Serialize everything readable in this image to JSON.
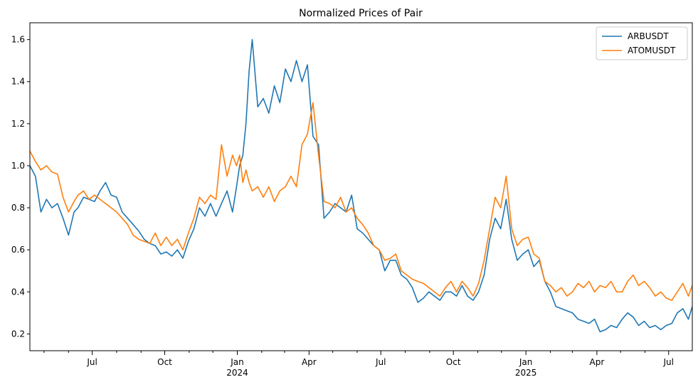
{
  "chart_data": {
    "type": "line",
    "title": "Normalized Prices of Pair",
    "xlabel": "",
    "ylabel": "",
    "legend_position": "top-right",
    "grid": false,
    "x_range": [
      "2023-04-13",
      "2025-07-31"
    ],
    "ylim": [
      0.12,
      1.68
    ],
    "y_ticks": [
      0.2,
      0.4,
      0.6,
      0.8,
      1.0,
      1.2,
      1.4,
      1.6
    ],
    "y_tick_labels": [
      "0.2",
      "0.4",
      "0.6",
      "0.8",
      "1.0",
      "1.2",
      "1.4",
      "1.6"
    ],
    "x_ticks": [
      {
        "date": "2023-07-01",
        "label": "Jul",
        "sub": ""
      },
      {
        "date": "2023-10-01",
        "label": "Oct",
        "sub": ""
      },
      {
        "date": "2024-01-01",
        "label": "Jan",
        "sub": "2024"
      },
      {
        "date": "2024-04-01",
        "label": "Apr",
        "sub": ""
      },
      {
        "date": "2024-07-01",
        "label": "Jul",
        "sub": ""
      },
      {
        "date": "2024-10-01",
        "label": "Oct",
        "sub": ""
      },
      {
        "date": "2025-01-01",
        "label": "Jan",
        "sub": "2025"
      },
      {
        "date": "2025-04-01",
        "label": "Apr",
        "sub": ""
      },
      {
        "date": "2025-07-01",
        "label": "Jul",
        "sub": ""
      }
    ],
    "minor_ticks": [
      "2023-05-01",
      "2023-06-01",
      "2023-08-01",
      "2023-09-01",
      "2023-11-01",
      "2023-12-01",
      "2024-02-01",
      "2024-03-01",
      "2024-05-01",
      "2024-06-01",
      "2024-08-01",
      "2024-09-01",
      "2024-11-01",
      "2024-12-01",
      "2025-02-01",
      "2025-03-01",
      "2025-05-01",
      "2025-06-01"
    ],
    "series": [
      {
        "name": "ARBUSDT",
        "color": "#1f77b4",
        "x": [
          "2023-04-13",
          "2023-04-20",
          "2023-04-27",
          "2023-05-04",
          "2023-05-11",
          "2023-05-18",
          "2023-05-25",
          "2023-06-01",
          "2023-06-08",
          "2023-06-13",
          "2023-06-20",
          "2023-06-27",
          "2023-07-04",
          "2023-07-11",
          "2023-07-18",
          "2023-07-25",
          "2023-08-01",
          "2023-08-08",
          "2023-08-15",
          "2023-08-22",
          "2023-08-29",
          "2023-09-05",
          "2023-09-12",
          "2023-09-19",
          "2023-09-26",
          "2023-10-03",
          "2023-10-10",
          "2023-10-17",
          "2023-10-24",
          "2023-10-31",
          "2023-11-07",
          "2023-11-14",
          "2023-11-21",
          "2023-11-28",
          "2023-12-05",
          "2023-12-12",
          "2023-12-19",
          "2023-12-26",
          "2023-12-31",
          "2024-01-04",
          "2024-01-08",
          "2024-01-12",
          "2024-01-16",
          "2024-01-20",
          "2024-01-27",
          "2024-02-03",
          "2024-02-10",
          "2024-02-17",
          "2024-02-24",
          "2024-03-02",
          "2024-03-09",
          "2024-03-16",
          "2024-03-23",
          "2024-03-30",
          "2024-04-06",
          "2024-04-13",
          "2024-04-20",
          "2024-04-27",
          "2024-05-04",
          "2024-05-11",
          "2024-05-18",
          "2024-05-25",
          "2024-06-01",
          "2024-06-08",
          "2024-06-15",
          "2024-06-22",
          "2024-06-29",
          "2024-07-06",
          "2024-07-13",
          "2024-07-20",
          "2024-07-27",
          "2024-08-03",
          "2024-08-10",
          "2024-08-17",
          "2024-08-24",
          "2024-08-31",
          "2024-09-07",
          "2024-09-14",
          "2024-09-21",
          "2024-09-28",
          "2024-10-05",
          "2024-10-12",
          "2024-10-19",
          "2024-10-26",
          "2024-11-02",
          "2024-11-09",
          "2024-11-16",
          "2024-11-23",
          "2024-11-30",
          "2024-12-07",
          "2024-12-14",
          "2024-12-21",
          "2024-12-28",
          "2025-01-04",
          "2025-01-11",
          "2025-01-18",
          "2025-01-25",
          "2025-02-01",
          "2025-02-08",
          "2025-02-15",
          "2025-02-22",
          "2025-03-01",
          "2025-03-08",
          "2025-03-15",
          "2025-03-22",
          "2025-03-29",
          "2025-04-05",
          "2025-04-12",
          "2025-04-19",
          "2025-04-26",
          "2025-05-03",
          "2025-05-10",
          "2025-05-17",
          "2025-05-24",
          "2025-05-31",
          "2025-06-07",
          "2025-06-14",
          "2025-06-21",
          "2025-06-28",
          "2025-07-05",
          "2025-07-12",
          "2025-07-19",
          "2025-07-26",
          "2025-07-31"
        ],
        "values": [
          1.0,
          0.95,
          0.78,
          0.84,
          0.8,
          0.82,
          0.75,
          0.67,
          0.78,
          0.8,
          0.85,
          0.84,
          0.83,
          0.88,
          0.92,
          0.86,
          0.85,
          0.78,
          0.75,
          0.72,
          0.69,
          0.65,
          0.63,
          0.62,
          0.58,
          0.59,
          0.57,
          0.6,
          0.56,
          0.64,
          0.7,
          0.8,
          0.76,
          0.82,
          0.76,
          0.82,
          0.88,
          0.78,
          0.9,
          1.0,
          1.05,
          1.2,
          1.45,
          1.6,
          1.28,
          1.32,
          1.25,
          1.38,
          1.3,
          1.46,
          1.4,
          1.5,
          1.4,
          1.48,
          1.14,
          1.1,
          0.75,
          0.78,
          0.82,
          0.8,
          0.78,
          0.86,
          0.7,
          0.68,
          0.65,
          0.62,
          0.6,
          0.5,
          0.55,
          0.55,
          0.48,
          0.46,
          0.42,
          0.35,
          0.37,
          0.4,
          0.38,
          0.36,
          0.4,
          0.4,
          0.38,
          0.43,
          0.38,
          0.36,
          0.4,
          0.48,
          0.65,
          0.75,
          0.7,
          0.84,
          0.65,
          0.55,
          0.58,
          0.6,
          0.52,
          0.55,
          0.45,
          0.4,
          0.33,
          0.32,
          0.31,
          0.3,
          0.27,
          0.26,
          0.25,
          0.27,
          0.21,
          0.22,
          0.24,
          0.23,
          0.27,
          0.3,
          0.28,
          0.24,
          0.26,
          0.23,
          0.24,
          0.22,
          0.24,
          0.25,
          0.3,
          0.32,
          0.27,
          0.33
        ]
      },
      {
        "name": "ATOMUSDT",
        "color": "#ff7f0e",
        "x": [
          "2023-04-13",
          "2023-04-20",
          "2023-04-27",
          "2023-05-04",
          "2023-05-11",
          "2023-05-18",
          "2023-05-25",
          "2023-06-01",
          "2023-06-08",
          "2023-06-13",
          "2023-06-20",
          "2023-06-27",
          "2023-07-04",
          "2023-07-11",
          "2023-07-18",
          "2023-07-25",
          "2023-08-01",
          "2023-08-08",
          "2023-08-15",
          "2023-08-22",
          "2023-08-29",
          "2023-09-05",
          "2023-09-12",
          "2023-09-19",
          "2023-09-26",
          "2023-10-03",
          "2023-10-10",
          "2023-10-17",
          "2023-10-24",
          "2023-10-31",
          "2023-11-07",
          "2023-11-14",
          "2023-11-21",
          "2023-11-28",
          "2023-12-05",
          "2023-12-12",
          "2023-12-19",
          "2023-12-26",
          "2023-12-31",
          "2024-01-04",
          "2024-01-08",
          "2024-01-12",
          "2024-01-16",
          "2024-01-20",
          "2024-01-27",
          "2024-02-03",
          "2024-02-10",
          "2024-02-17",
          "2024-02-24",
          "2024-03-02",
          "2024-03-09",
          "2024-03-16",
          "2024-03-23",
          "2024-03-30",
          "2024-04-06",
          "2024-04-13",
          "2024-04-20",
          "2024-04-27",
          "2024-05-04",
          "2024-05-11",
          "2024-05-18",
          "2024-05-25",
          "2024-06-01",
          "2024-06-08",
          "2024-06-15",
          "2024-06-22",
          "2024-06-29",
          "2024-07-06",
          "2024-07-13",
          "2024-07-20",
          "2024-07-27",
          "2024-08-03",
          "2024-08-10",
          "2024-08-17",
          "2024-08-24",
          "2024-08-31",
          "2024-09-07",
          "2024-09-14",
          "2024-09-21",
          "2024-09-28",
          "2024-10-05",
          "2024-10-12",
          "2024-10-19",
          "2024-10-26",
          "2024-11-02",
          "2024-11-09",
          "2024-11-16",
          "2024-11-23",
          "2024-11-30",
          "2024-12-07",
          "2024-12-14",
          "2024-12-21",
          "2024-12-28",
          "2025-01-04",
          "2025-01-11",
          "2025-01-18",
          "2025-01-25",
          "2025-02-01",
          "2025-02-08",
          "2025-02-15",
          "2025-02-22",
          "2025-03-01",
          "2025-03-08",
          "2025-03-15",
          "2025-03-22",
          "2025-03-29",
          "2025-04-05",
          "2025-04-12",
          "2025-04-19",
          "2025-04-26",
          "2025-05-03",
          "2025-05-10",
          "2025-05-17",
          "2025-05-24",
          "2025-05-31",
          "2025-06-07",
          "2025-06-14",
          "2025-06-21",
          "2025-06-28",
          "2025-07-05",
          "2025-07-12",
          "2025-07-19",
          "2025-07-26",
          "2025-07-31"
        ],
        "values": [
          1.07,
          1.02,
          0.98,
          1.0,
          0.97,
          0.96,
          0.85,
          0.78,
          0.83,
          0.86,
          0.88,
          0.84,
          0.86,
          0.84,
          0.82,
          0.8,
          0.78,
          0.75,
          0.72,
          0.67,
          0.65,
          0.64,
          0.63,
          0.68,
          0.62,
          0.66,
          0.62,
          0.65,
          0.6,
          0.68,
          0.75,
          0.85,
          0.82,
          0.86,
          0.84,
          1.1,
          0.95,
          1.05,
          1.0,
          1.05,
          0.92,
          0.98,
          0.92,
          0.88,
          0.9,
          0.85,
          0.9,
          0.83,
          0.88,
          0.9,
          0.95,
          0.9,
          1.1,
          1.15,
          1.3,
          1.05,
          0.83,
          0.82,
          0.8,
          0.85,
          0.78,
          0.8,
          0.75,
          0.72,
          0.68,
          0.62,
          0.6,
          0.55,
          0.56,
          0.58,
          0.5,
          0.48,
          0.46,
          0.45,
          0.44,
          0.42,
          0.4,
          0.38,
          0.42,
          0.45,
          0.4,
          0.45,
          0.42,
          0.38,
          0.44,
          0.55,
          0.7,
          0.85,
          0.8,
          0.95,
          0.7,
          0.62,
          0.65,
          0.66,
          0.58,
          0.56,
          0.45,
          0.43,
          0.4,
          0.42,
          0.38,
          0.4,
          0.44,
          0.42,
          0.45,
          0.4,
          0.43,
          0.42,
          0.45,
          0.4,
          0.4,
          0.45,
          0.48,
          0.43,
          0.45,
          0.42,
          0.38,
          0.4,
          0.37,
          0.36,
          0.4,
          0.44,
          0.38,
          0.43
        ]
      }
    ]
  }
}
